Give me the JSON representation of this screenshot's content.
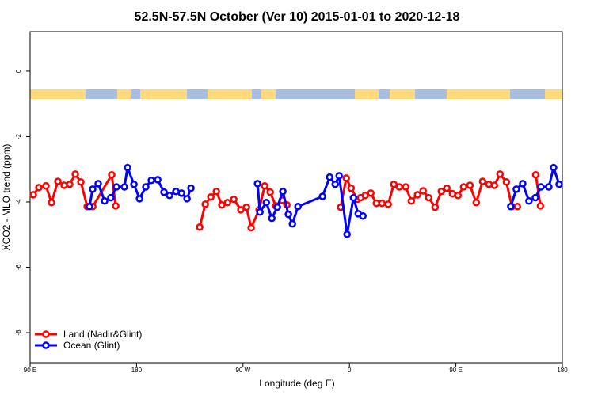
{
  "chart_data": {
    "type": "line",
    "title": "52.5N-57.5N October (Ver 10)   2015-01-01 to 2020-12-18",
    "x_label": "Longitude (deg E)",
    "y_label": "XCO2 - MLO trend (ppm)",
    "xlim": [
      90,
      540
    ],
    "ylim": [
      -8.92,
      1.21
    ],
    "xticks": [
      {
        "value": 90,
        "label": "90 E"
      },
      {
        "value": 180,
        "label": "180"
      },
      {
        "value": 270,
        "label": "90 W"
      },
      {
        "value": 360,
        "label": "0"
      },
      {
        "value": 450,
        "label": "90 E"
      },
      {
        "value": 540,
        "label": "180"
      }
    ],
    "yticks": [
      0,
      -2,
      -4,
      -6,
      -8
    ],
    "legend": "bottomleft",
    "series": [
      {
        "name": "Land (Nadir&Glint)",
        "color": "#ff0000",
        "x": [
          92.7,
          97.4,
          103.4,
          108.1,
          113.5,
          118.8,
          123.5,
          128.2,
          132.9,
          138.3,
          143,
          159,
          162.4,
          null,
          233.4,
          238.1,
          242.8,
          247.5,
          252.1,
          256.9,
          262.2,
          268.2,
          272.9,
          276.9,
          283.6,
          288.3,
          293,
          297.7,
          303.1,
          307.1,
          null,
          352.6,
          357.3,
          361.4,
          366.7,
          369.4,
          373.4,
          378.1,
          382.8,
          387.5,
          392.8,
          397.5,
          402.2,
          407.6,
          412.3,
          417.6,
          422.3,
          427,
          432.4,
          437.7,
          442.4,
          447.1,
          451.8,
          456.5,
          461.9,
          467.2,
          472.6,
          477.9,
          482.6,
          487.3,
          492.7,
          497.4,
          502,
          null,
          517.5,
          521.5
        ],
        "values": [
          -3.78,
          -3.56,
          -3.51,
          -4.02,
          -3.37,
          -3.49,
          -3.46,
          -3.15,
          -3.39,
          -4.14,
          -4.14,
          -3.17,
          -4.12,
          null,
          -4.77,
          -4.07,
          -3.85,
          -3.68,
          -4.09,
          -4.02,
          -3.92,
          -4.24,
          -4.16,
          -4.79,
          -4.24,
          -3.51,
          -3.7,
          -4.12,
          -3.95,
          -4.09,
          null,
          -4.16,
          -3.27,
          -3.58,
          -3.92,
          -3.87,
          -3.8,
          -3.73,
          -4.04,
          -4.04,
          -4.07,
          -3.46,
          -3.54,
          -3.54,
          -3.97,
          -3.78,
          -3.66,
          -3.87,
          -4.16,
          -3.68,
          -3.58,
          -3.75,
          -3.8,
          -3.54,
          -3.49,
          -4.02,
          -3.37,
          -3.46,
          -3.49,
          -3.15,
          -3.39,
          -4.14,
          -4.14,
          null,
          -3.17,
          -4.12
        ]
      },
      {
        "name": "Ocean (Glint)",
        "color": "#0000ff",
        "x": [
          140.2,
          142.9,
          147.6,
          153,
          158.3,
          163,
          169.7,
          172.4,
          177.8,
          182.5,
          187.8,
          192.5,
          197.9,
          203.2,
          207.9,
          213.3,
          218,
          222.7,
          226,
          null,
          282.3,
          284.3,
          289.7,
          294.4,
          299,
          303.7,
          308.4,
          311.8,
          316.5,
          337.2,
          343.3,
          348,
          351.3,
          358,
          363.4,
          367.4,
          371.4,
          null,
          496.4,
          501.1,
          506.5,
          511.8,
          517.2,
          521.9,
          528.6,
          532.6,
          537.3
        ],
        "values": [
          -4.14,
          -3.61,
          -3.44,
          -3.97,
          -3.87,
          -3.54,
          -3.54,
          -2.95,
          -3.46,
          -3.9,
          -3.54,
          -3.34,
          -3.32,
          -3.7,
          -3.8,
          -3.68,
          -3.73,
          -3.9,
          -3.58,
          null,
          -3.44,
          -4.31,
          -4.02,
          -4.5,
          -4.16,
          -3.68,
          -4.38,
          -4.67,
          -4.14,
          -3.83,
          -3.24,
          -3.46,
          -3.2,
          -4.99,
          -3.87,
          -4.36,
          -4.43,
          null,
          -4.14,
          -3.61,
          -3.44,
          -3.97,
          -3.87,
          -3.54,
          -3.54,
          -2.95,
          -3.46
        ]
      }
    ]
  }
}
